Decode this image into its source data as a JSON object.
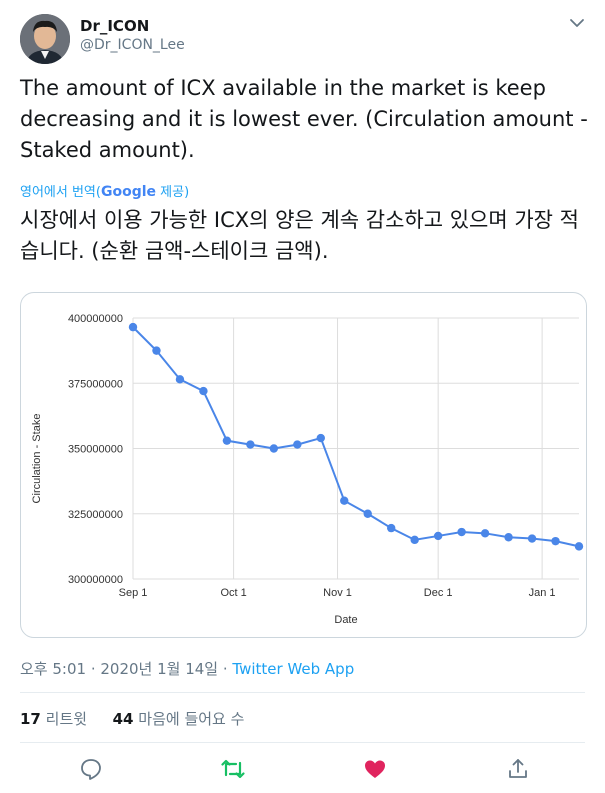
{
  "author": {
    "name": "Dr_ICON",
    "handle": "@Dr_ICON_Lee"
  },
  "tweet": {
    "text": "The amount of ICX available in the market is keep decreasing and it is lowest ever. (Circulation amount - Staked amount).",
    "translate_label": "영어에서 번역(",
    "translate_provider": "Google",
    "translate_suffix": " 제공)",
    "translated_text": "시장에서 이용 가능한 ICX의 양은 계속 감소하고 있으며 가장 적습니다. (순환 금액-스테이크 금액).",
    "time": "오후 5:01 · 2020년 1월 14일 · ",
    "app": "Twitter Web App"
  },
  "stats": {
    "retweets_count": "17",
    "retweets_label": "리트윗",
    "likes_count": "44",
    "likes_label": "마음에 들어요 수"
  },
  "icons": {
    "caret": "chevron-down-icon",
    "reply": "reply-icon",
    "retweet": "retweet-icon",
    "like": "heart-icon",
    "share": "share-icon"
  },
  "colors": {
    "link": "#1da1f2",
    "retweet": "#17bf63",
    "like": "#e0245e",
    "series": "#4a86e8"
  },
  "chart_data": {
    "type": "line",
    "xlabel": "Date",
    "ylabel": "Circulation - Stake",
    "x_ticks": [
      "Sep 1",
      "Oct 1",
      "Nov 1",
      "Dec 1",
      "Jan 1"
    ],
    "y_ticks": [
      "300000000",
      "325000000",
      "350000000",
      "375000000",
      "400000000"
    ],
    "ylim": [
      300000000,
      400000000
    ],
    "xlim": [
      "2019-09-01",
      "2020-01-12"
    ],
    "grid": true,
    "series": [
      {
        "x": [
          "2019-09-01",
          "2019-09-08",
          "2019-09-15",
          "2019-09-22",
          "2019-09-29",
          "2019-10-06",
          "2019-10-13",
          "2019-10-20",
          "2019-10-27",
          "2019-11-03",
          "2019-11-10",
          "2019-11-17",
          "2019-11-24",
          "2019-12-01",
          "2019-12-08",
          "2019-12-15",
          "2019-12-22",
          "2019-12-29",
          "2020-01-05",
          "2020-01-12"
        ],
        "y": [
          396500000,
          387500000,
          376500000,
          372000000,
          353000000,
          351500000,
          350000000,
          351500000,
          354000000,
          330000000,
          325000000,
          319500000,
          315000000,
          316500000,
          318000000,
          317500000,
          316000000,
          315500000,
          314500000,
          312500000
        ]
      }
    ]
  }
}
